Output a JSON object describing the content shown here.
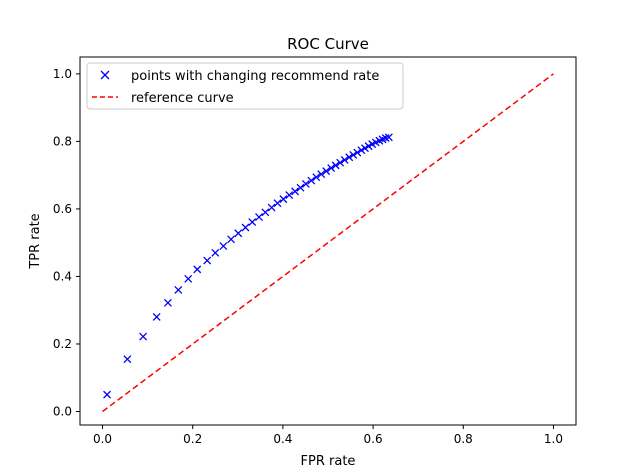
{
  "chart_data": {
    "type": "line",
    "title": "ROC Curve",
    "xlabel": "FPR rate",
    "ylabel": "TPR rate",
    "xlim": [
      -0.05,
      1.05
    ],
    "ylim": [
      -0.04,
      1.05
    ],
    "xticks": [
      "0.0",
      "0.2",
      "0.4",
      "0.6",
      "0.8",
      "1.0"
    ],
    "yticks": [
      "0.0",
      "0.2",
      "0.4",
      "0.6",
      "0.8",
      "1.0"
    ],
    "grid": false,
    "legend_position": "upper-left",
    "series": [
      {
        "name": "points with changing recommend rate",
        "style": "markers",
        "marker": "x",
        "color": "#0000ff",
        "x": [
          0.01,
          0.055,
          0.09,
          0.12,
          0.145,
          0.168,
          0.19,
          0.21,
          0.232,
          0.25,
          0.268,
          0.285,
          0.301,
          0.317,
          0.332,
          0.347,
          0.361,
          0.375,
          0.388,
          0.401,
          0.414,
          0.427,
          0.439,
          0.451,
          0.463,
          0.474,
          0.485,
          0.496,
          0.507,
          0.517,
          0.527,
          0.537,
          0.547,
          0.556,
          0.565,
          0.574,
          0.582,
          0.59,
          0.598,
          0.606,
          0.614,
          0.621,
          0.628,
          0.635
        ],
        "y": [
          0.05,
          0.155,
          0.222,
          0.28,
          0.322,
          0.36,
          0.393,
          0.421,
          0.447,
          0.47,
          0.49,
          0.51,
          0.528,
          0.545,
          0.561,
          0.576,
          0.59,
          0.604,
          0.617,
          0.629,
          0.641,
          0.652,
          0.663,
          0.674,
          0.684,
          0.694,
          0.703,
          0.712,
          0.721,
          0.729,
          0.737,
          0.745,
          0.753,
          0.76,
          0.767,
          0.774,
          0.78,
          0.786,
          0.792,
          0.797,
          0.802,
          0.806,
          0.81,
          0.812
        ]
      },
      {
        "name": "reference curve",
        "style": "dashed-line",
        "color": "#ff0000",
        "x": [
          0.0,
          1.0
        ],
        "y": [
          0.0,
          1.0
        ]
      }
    ]
  }
}
